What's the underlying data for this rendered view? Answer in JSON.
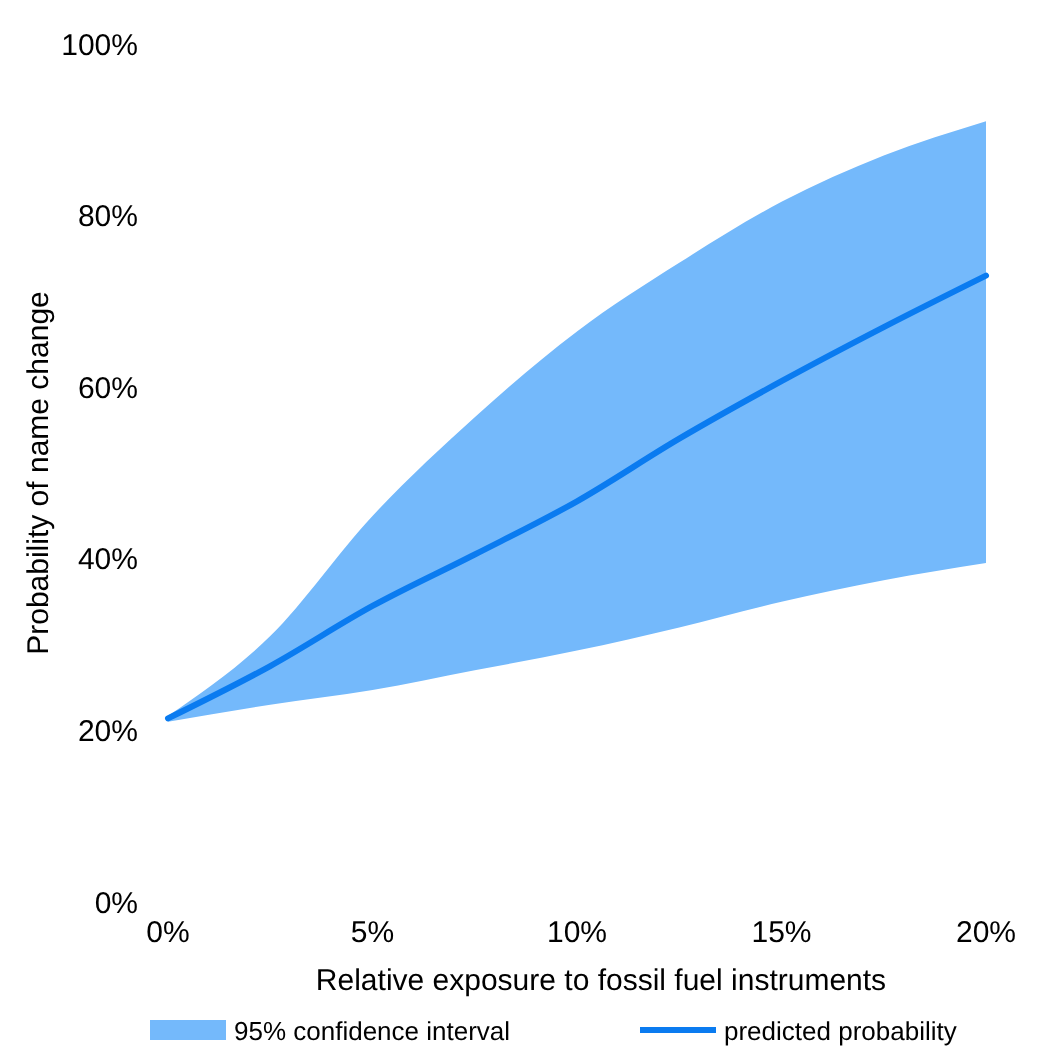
{
  "chart_data": {
    "type": "line",
    "xlabel": "Relative exposure to fossil fuel instruments",
    "ylabel": "Probability of name change",
    "annotations": [
      "95% confidence interval"
    ],
    "x": [
      0,
      2.5,
      5,
      7.5,
      10,
      12.5,
      15,
      17.5,
      20
    ],
    "xlim": [
      0,
      20
    ],
    "xticks": [
      {
        "value": 0,
        "label": "0%"
      },
      {
        "value": 5,
        "label": "5%"
      },
      {
        "value": 10,
        "label": "10%"
      },
      {
        "value": 15,
        "label": "15%"
      },
      {
        "value": 20,
        "label": "20%"
      }
    ],
    "ylim": [
      0,
      100
    ],
    "yticks": [
      {
        "value": 0,
        "label": "0%"
      },
      {
        "value": 20,
        "label": "20%"
      },
      {
        "value": 40,
        "label": "40%"
      },
      {
        "value": 60,
        "label": "60%"
      },
      {
        "value": 80,
        "label": "80%"
      },
      {
        "value": 100,
        "label": "100%"
      }
    ],
    "series": [
      {
        "type": "line",
        "name": "predicted probability",
        "color": "#0a7bf0",
        "values": [
          21.4,
          27.5,
          34.5,
          40.5,
          46.7,
          54,
          60.7,
          67,
          73
        ],
        "lower": [
          21.0,
          23,
          24.7,
          27,
          29.3,
          32,
          35,
          37.5,
          39.5
        ],
        "upper": [
          21.7,
          31,
          45,
          56.5,
          66.5,
          74.5,
          81.6,
          87,
          91
        ]
      }
    ],
    "legend": "bottom",
    "grid": false
  }
}
